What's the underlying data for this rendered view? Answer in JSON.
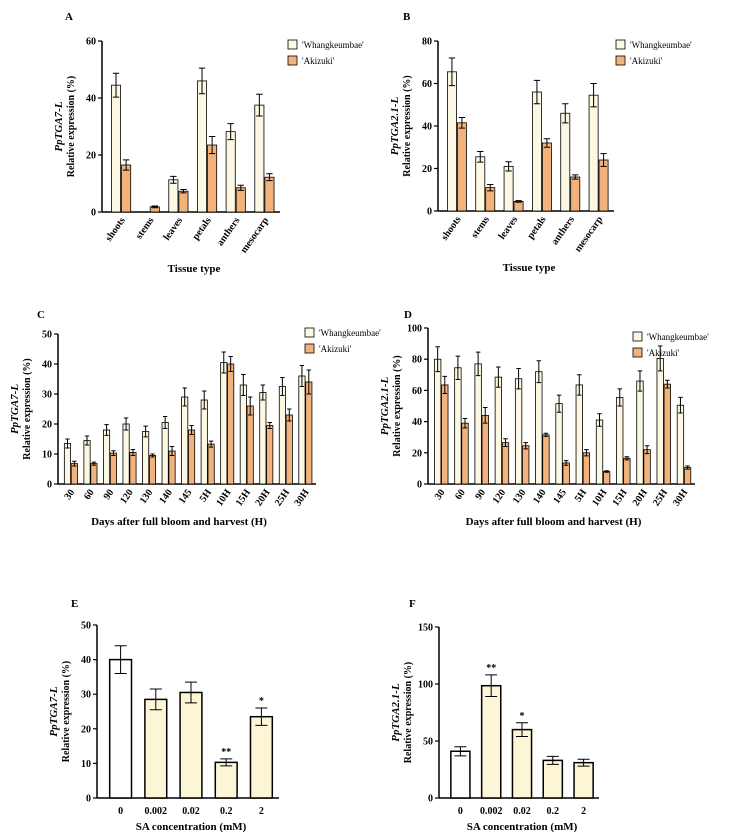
{
  "colors": {
    "whangkeumbae": "#fdf8e3",
    "akizuki": "#f2b27b",
    "sa_control": "#ffffff",
    "sa_treated": "#fcf5d6",
    "border": "#000000"
  },
  "chart_data": [
    {
      "id": "A",
      "type": "bar",
      "panel_label": "A",
      "ylabel_gene": "PpTGA7-L",
      "ylabel": "Relative expression (%)",
      "xlabel": "Tissue type",
      "ylim": [
        0,
        60
      ],
      "yticks": [
        0,
        20,
        40,
        60
      ],
      "categories": [
        "shoots",
        "stems",
        "leaves",
        "petals",
        "anthers",
        "mesocarp"
      ],
      "rotate_labels": true,
      "legend": [
        "'Whangkeumbae'",
        "'Akizuki'"
      ],
      "series": [
        {
          "name": "'Whangkeumbae'",
          "values": [
            44.5,
            0,
            11.3,
            46,
            28.2,
            37.5
          ],
          "errors": [
            4.2,
            0,
            1.2,
            4.5,
            2.8,
            3.8
          ]
        },
        {
          "name": "'Akizuki'",
          "values": [
            16.5,
            1.8,
            7.3,
            23.5,
            8.5,
            12.2
          ],
          "errors": [
            1.8,
            0.3,
            0.6,
            3.0,
            0.9,
            1.2
          ]
        }
      ]
    },
    {
      "id": "B",
      "type": "bar",
      "panel_label": "B",
      "ylabel_gene": "PpTGA2.1-L",
      "ylabel": "Relative expression (%)",
      "xlabel": "Tissue type",
      "ylim": [
        0,
        80
      ],
      "yticks": [
        0,
        20,
        40,
        60,
        80
      ],
      "categories": [
        "shoots",
        "stems",
        "leaves",
        "petals",
        "anthers",
        "mesocarp"
      ],
      "rotate_labels": true,
      "legend": [
        "'Whangkeumbae'",
        "'Akizuki'"
      ],
      "series": [
        {
          "name": "'Whangkeumbae'",
          "values": [
            65.5,
            25.5,
            21,
            56,
            46,
            54.5
          ],
          "errors": [
            6.5,
            2.5,
            2.2,
            5.5,
            4.5,
            5.5
          ]
        },
        {
          "name": "'Akizuki'",
          "values": [
            41.5,
            11,
            4.5,
            32,
            16,
            24
          ],
          "errors": [
            2.5,
            1.5,
            0.4,
            2.0,
            1.0,
            3.0
          ]
        }
      ]
    },
    {
      "id": "C",
      "type": "bar",
      "panel_label": "C",
      "ylabel_gene": "PpTGA7-L",
      "ylabel": "Relative expression (%)",
      "xlabel": "Days after full bloom and harvest (H)",
      "ylim": [
        0,
        50
      ],
      "yticks": [
        0,
        10,
        20,
        30,
        40,
        50
      ],
      "categories": [
        "30",
        "60",
        "90",
        "120",
        "130",
        "140",
        "145",
        "5H",
        "10H",
        "15H",
        "20H",
        "25H",
        "30H"
      ],
      "rotate_labels": true,
      "legend": [
        "'Whangkeumbae'",
        "'Akizuki'"
      ],
      "series": [
        {
          "name": "'Whangkeumbae'",
          "values": [
            13.5,
            14.5,
            18,
            20,
            17.5,
            20.5,
            29,
            28,
            40.5,
            33,
            30.5,
            32.5,
            36
          ],
          "errors": [
            1.5,
            1.5,
            1.8,
            2.0,
            1.8,
            2.0,
            3.0,
            3.0,
            3.5,
            3.5,
            2.5,
            3.0,
            3.5
          ]
        },
        {
          "name": "'Akizuki'",
          "values": [
            6.8,
            6.8,
            10.3,
            10.5,
            9.5,
            11,
            18,
            13.3,
            40,
            26,
            19.5,
            23,
            34
          ],
          "errors": [
            0.8,
            0.5,
            0.8,
            1.0,
            0.5,
            1.5,
            1.5,
            1.0,
            2.5,
            3.0,
            1.0,
            2.0,
            4.0
          ]
        }
      ]
    },
    {
      "id": "D",
      "type": "bar",
      "panel_label": "D",
      "ylabel_gene": "PpTGA2.1-L",
      "ylabel": "Relative expression (%)",
      "xlabel": "Days after full bloom and harvest (H)",
      "ylim": [
        0,
        100
      ],
      "yticks": [
        0,
        20,
        40,
        60,
        80,
        100
      ],
      "categories": [
        "30",
        "60",
        "90",
        "120",
        "130",
        "140",
        "145",
        "5H",
        "10H",
        "15H",
        "20H",
        "25H",
        "30H"
      ],
      "rotate_labels": true,
      "legend": [
        "'Whangkeumbae'",
        "'Akizuki'"
      ],
      "series": [
        {
          "name": "'Whangkeumbae'",
          "values": [
            80,
            74.5,
            77,
            68.5,
            67.5,
            72,
            51.5,
            63.5,
            41,
            55.5,
            66,
            80.5,
            50.5
          ],
          "errors": [
            8,
            7.5,
            7.5,
            6.5,
            6.5,
            7,
            5.5,
            6.5,
            4,
            5.5,
            6.5,
            8,
            5
          ]
        },
        {
          "name": "'Akizuki'",
          "values": [
            63.5,
            39,
            44,
            26.5,
            24.5,
            31.5,
            13.5,
            20,
            8,
            16.5,
            22,
            64,
            10.5
          ],
          "errors": [
            5.5,
            3,
            5,
            2.5,
            2,
            1,
            1.5,
            2,
            0.5,
            1,
            2.5,
            2.5,
            1
          ]
        }
      ]
    },
    {
      "id": "E",
      "type": "bar",
      "panel_label": "E",
      "ylabel_gene": "PpTGA7-L",
      "ylabel": "Relative expression (%)",
      "xlabel": "SA concentration (mM)",
      "ylim": [
        0,
        50
      ],
      "yticks": [
        0,
        10,
        20,
        30,
        40,
        50
      ],
      "categories": [
        "0",
        "0.002",
        "0.02",
        "0.2",
        "2"
      ],
      "rotate_labels": false,
      "series": [
        {
          "name": "",
          "values": [
            40,
            28.5,
            30.5,
            10.3,
            23.5
          ],
          "errors": [
            4,
            3,
            3,
            1,
            2.5
          ]
        }
      ],
      "annotations": [
        "",
        "",
        "",
        "**",
        "*"
      ]
    },
    {
      "id": "F",
      "type": "bar",
      "panel_label": "F",
      "ylabel_gene": "PpTGA2.1-L",
      "ylabel": "Relative expression (%)",
      "xlabel": "SA concentration (mM)",
      "ylim": [
        0,
        150
      ],
      "yticks": [
        0,
        50,
        100,
        150
      ],
      "categories": [
        "0",
        "0.002",
        "0.02",
        "0.2",
        "2"
      ],
      "rotate_labels": false,
      "series": [
        {
          "name": "",
          "values": [
            41,
            98.5,
            60,
            33,
            31
          ],
          "errors": [
            4,
            9.5,
            6,
            3.5,
            3
          ]
        }
      ],
      "annotations": [
        "",
        "**",
        "*",
        "",
        ""
      ]
    }
  ]
}
